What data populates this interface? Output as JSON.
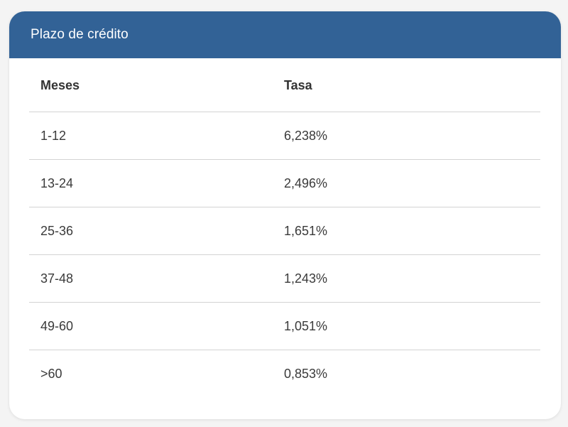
{
  "card": {
    "title": "Plazo de crédito"
  },
  "table": {
    "headers": {
      "months": "Meses",
      "rate": "Tasa"
    },
    "rows": [
      {
        "months": "1-12",
        "rate": "6,238%"
      },
      {
        "months": "13-24",
        "rate": "2,496%"
      },
      {
        "months": "25-36",
        "rate": "1,651%"
      },
      {
        "months": "37-48",
        "rate": "1,243%"
      },
      {
        "months": "49-60",
        "rate": "1,051%"
      },
      {
        "months": ">60",
        "rate": "0,853%"
      }
    ]
  },
  "colors": {
    "header_background": "#326296",
    "header_text": "#ffffff",
    "divider": "#d3d3d3",
    "body_text": "#3a3a3a",
    "page_background": "#f4f4f4"
  }
}
